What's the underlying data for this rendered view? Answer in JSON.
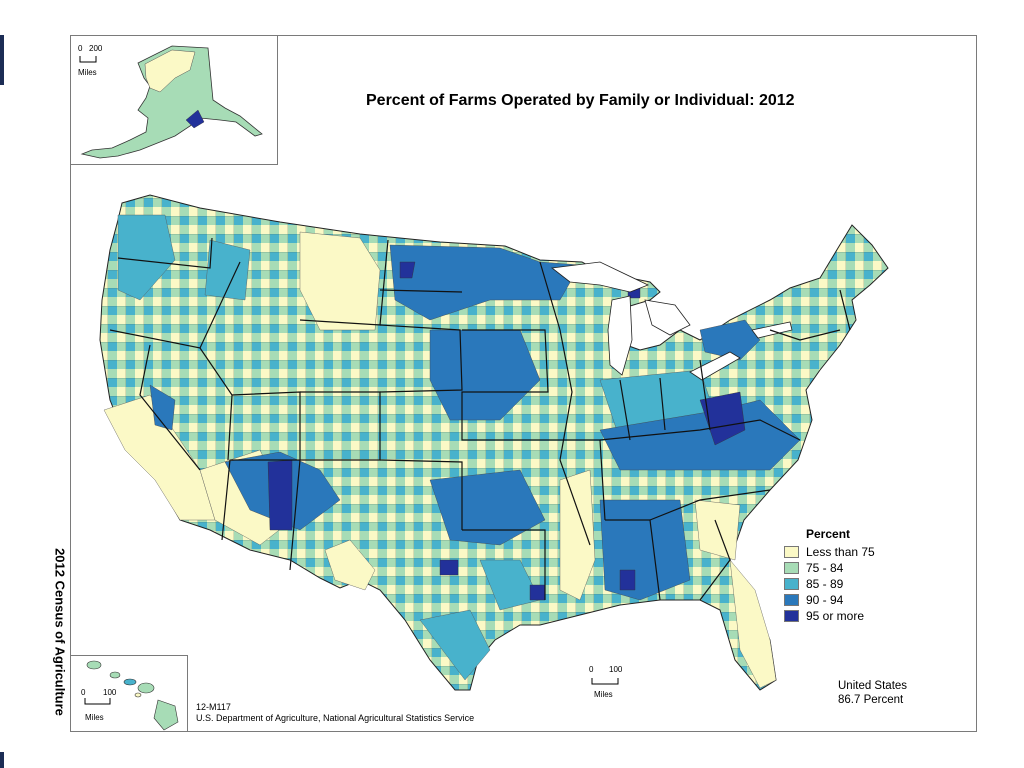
{
  "title": "Percent of Farms Operated by Family or Individual:  2012",
  "side_title": "2012 Census of Agriculture",
  "scales": {
    "alaska": {
      "zero": "0",
      "max": "200",
      "unit": "Miles"
    },
    "hawaii": {
      "zero": "0",
      "max": "100",
      "unit": "Miles"
    },
    "conus": {
      "zero": "0",
      "max": "100",
      "unit": "Miles"
    }
  },
  "legend": {
    "title": "Percent",
    "items": [
      {
        "label": "Less than 75",
        "color": "#fbf9c6"
      },
      {
        "label": "75 - 84",
        "color": "#a7dcb6"
      },
      {
        "label": "85 - 89",
        "color": "#48b2cc"
      },
      {
        "label": "90 - 94",
        "color": "#2a78bb"
      },
      {
        "label": "95 or more",
        "color": "#22319a"
      }
    ]
  },
  "summary": {
    "line1": "United States",
    "line2": "86.7 Percent"
  },
  "footer": {
    "code": "12-M117",
    "source": "U.S. Department of Agriculture, National Agricultural Statistics Service"
  }
}
